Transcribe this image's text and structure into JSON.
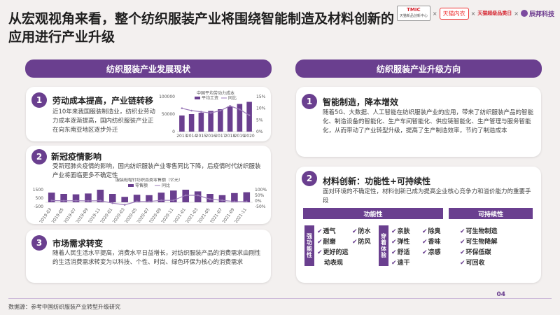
{
  "title": "从宏观视角来看，整个纺织服装产业将围绕智能制造及材料创新的应用进行产业升级",
  "logos": {
    "logo1_line1": "TMIC",
    "logo1_line2": "天猫新品创新中心",
    "logo2": "天猫内衣",
    "logo3": "天猫超级品类日",
    "logo4": "辰邦科技",
    "sep": "×"
  },
  "left_header": "纺织服装产业发展现状",
  "right_header": "纺织服装产业升级方向",
  "left_cards": [
    {
      "num": "1",
      "title": "劳动成本提高，产业链转移",
      "text": "近10年来我国服装制造业，纺织业劳动力成本逐渐提高，国内纺织服装产业正在向东南亚地区逐步外迁"
    },
    {
      "num": "2",
      "title": "新冠疫情影响",
      "text": "受新冠肺炎疫情的影响，国内纺织服装产业零售同比下降，后疫情时代纺织服装产业将面临更多不确定性"
    },
    {
      "num": "3",
      "title": "市场需求转变",
      "text": "随着人民生活水平提高，消费水平日益增长，对纺织服装产品的消费需求由刚性的生活消费需求转变为以科技、个性、时尚、绿色环保为核心的消费需求"
    }
  ],
  "right_cards": [
    {
      "num": "1",
      "title": "智能制造，降本增效",
      "text": "随着5G、大数据、人工智能在纺织服装产业的应用，带来了纺织服装产品的智能化、制造设备的智能化、生产车间智能化、供应链智能化、生产管理与服务智能化，从而带动了产业转型升级，提高了生产制造效率，节约了制造成本"
    },
    {
      "num": "2",
      "title": "材料创新：功能性+可持续性",
      "text": "面对环境的不确定性，材料创新已成为提高企业核心竞争力和溢价能力的重要手段"
    }
  ],
  "table": {
    "col1_head": "功能性",
    "col2_head": "可持续性",
    "group1_label": "强功能性",
    "group1_items": [
      "透气",
      "防水",
      "耐磨",
      "防风",
      "更好的运",
      "动表现"
    ],
    "group2_label": "穿着体验",
    "group2_items": [
      "亲肤",
      "除臭",
      "弹性",
      "香味",
      "舒适",
      "凉感",
      "速干"
    ],
    "sustain_items": [
      "可生物制造",
      "可生物降解",
      "环保低碳",
      "可回收"
    ]
  },
  "page_number": "04",
  "source": "数据源：参考中国纺织服装产业转型升级研究",
  "chart_data": [
    {
      "type": "bar",
      "title": "中国平均劳动力成本",
      "legend": [
        "平均工资",
        "同比"
      ],
      "categories": [
        "2013",
        "2014",
        "2015",
        "2016",
        "2017",
        "2018",
        "2019",
        "2020"
      ],
      "series": [
        {
          "name": "平均工资",
          "values": [
            46000,
            50000,
            54000,
            59000,
            64000,
            72000,
            79000,
            85000
          ]
        },
        {
          "name": "同比",
          "values": [
            10,
            9,
            8.5,
            8,
            9,
            11,
            9.5,
            7
          ]
        }
      ],
      "y_left": [
        "100000",
        "50000",
        "0"
      ],
      "y_right": [
        "15%",
        "10%",
        "5%",
        "0%"
      ],
      "colors": {
        "bar": "#6a3f8f",
        "line": "#9b7bb8"
      }
    },
    {
      "type": "bar",
      "title": "服装鞋帽针纺织品类零售额（亿元）",
      "legend": [
        "零售额",
        "同比"
      ],
      "categories": [
        "2019-03",
        "2019-05",
        "2019-07",
        "2019-09",
        "2019-11",
        "2020-01",
        "2020-03",
        "2020-05",
        "2020-07",
        "2020-09",
        "2020-11",
        "2021-01",
        "2021-03",
        "2021-05",
        "2021-07",
        "2021-09",
        "2021-11"
      ],
      "series": [
        {
          "name": "零售额",
          "values": [
            1150,
            1000,
            950,
            1050,
            1500,
            1000,
            650,
            900,
            850,
            1150,
            1400,
            1500,
            1300,
            1000,
            850,
            1100,
            1200
          ]
        },
        {
          "name": "同比",
          "values": [
            3,
            1,
            2,
            0,
            2,
            -20,
            -35,
            -5,
            -5,
            5,
            5,
            50,
            50,
            15,
            5,
            -5,
            -5
          ]
        }
      ],
      "y_left": [
        "1500",
        "500",
        "-500"
      ],
      "y_right": [
        "100%",
        "50%",
        "0%",
        "-50%"
      ],
      "colors": {
        "bar": "#6a3f8f",
        "line": "#9b7bb8"
      }
    }
  ]
}
